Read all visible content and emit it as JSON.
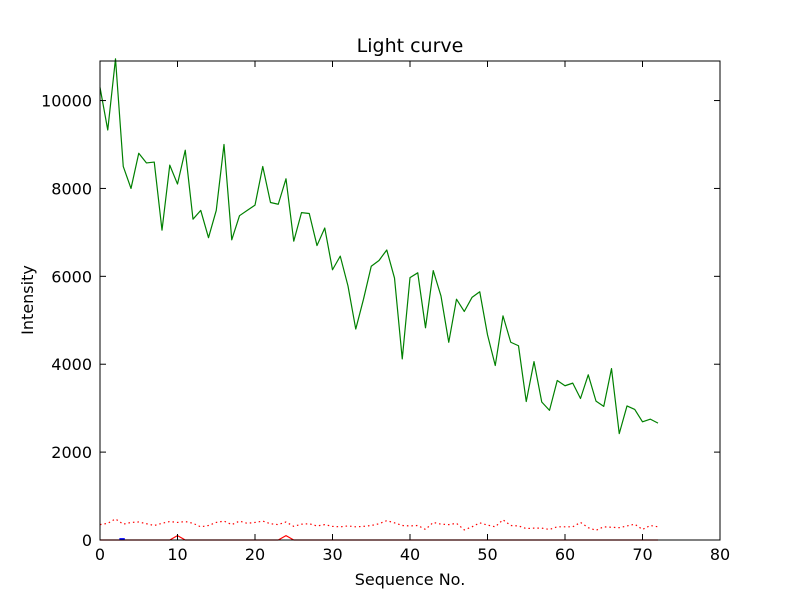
{
  "chart_data": {
    "type": "line",
    "title": "Light curve",
    "xlabel": "Sequence No.",
    "ylabel": "Intensity",
    "xlim": [
      0,
      80
    ],
    "ylim": [
      0,
      10900
    ],
    "xticks": [
      "0",
      "10",
      "20",
      "30",
      "40",
      "50",
      "60",
      "70",
      "80"
    ],
    "yticks": [
      "0",
      "2000",
      "4000",
      "6000",
      "8000",
      "10000"
    ],
    "grid": false,
    "legend": "none",
    "series": [
      {
        "color": "#008000",
        "style": "solid",
        "x": [
          0,
          1,
          2,
          3,
          4,
          5,
          6,
          7,
          8,
          9,
          10,
          11,
          12,
          13,
          14,
          15,
          16,
          17,
          18,
          19,
          20,
          21,
          22,
          23,
          24,
          25,
          26,
          27,
          28,
          29,
          30,
          31,
          32,
          33,
          34,
          35,
          36,
          37,
          38,
          39,
          40,
          41,
          42,
          43,
          44,
          45,
          46,
          47,
          48,
          49,
          50,
          51,
          52,
          53,
          54,
          55,
          56,
          57,
          58,
          59,
          60,
          61,
          62,
          63,
          64,
          65,
          66,
          67,
          68,
          69,
          70,
          71,
          72
        ],
        "values": [
          10300,
          9330,
          10950,
          8500,
          8000,
          8800,
          8580,
          8600,
          7050,
          8530,
          8100,
          8870,
          7300,
          7500,
          6880,
          7500,
          9000,
          6830,
          7380,
          7500,
          7620,
          8500,
          7680,
          7640,
          8220,
          6800,
          7450,
          7430,
          6700,
          7100,
          6150,
          6460,
          5780,
          4800,
          5480,
          6230,
          6360,
          6600,
          5960,
          4120,
          5970,
          6080,
          4830,
          6130,
          5550,
          4500,
          5480,
          5200,
          5520,
          5650,
          4670,
          3970,
          5100,
          4500,
          4420,
          3150,
          4060,
          3140,
          2950,
          3630,
          3510,
          3570,
          3220,
          3760,
          3160,
          3040,
          3900,
          2420,
          3050,
          2970,
          2690,
          2750,
          2660
        ]
      },
      {
        "color": "#ff0000",
        "style": "dotted",
        "x": [
          0,
          1,
          2,
          3,
          4,
          5,
          6,
          7,
          8,
          9,
          10,
          11,
          12,
          13,
          14,
          15,
          16,
          17,
          18,
          19,
          20,
          21,
          22,
          23,
          24,
          25,
          26,
          27,
          28,
          29,
          30,
          31,
          32,
          33,
          34,
          35,
          36,
          37,
          38,
          39,
          40,
          41,
          42,
          43,
          44,
          45,
          46,
          47,
          48,
          49,
          50,
          51,
          52,
          53,
          54,
          55,
          56,
          57,
          58,
          59,
          60,
          61,
          62,
          63,
          64,
          65,
          66,
          67,
          68,
          69,
          70,
          71,
          72
        ],
        "values": [
          350,
          380,
          480,
          360,
          400,
          410,
          370,
          330,
          380,
          420,
          400,
          420,
          380,
          300,
          330,
          400,
          430,
          350,
          430,
          380,
          400,
          430,
          370,
          350,
          410,
          310,
          360,
          370,
          320,
          350,
          310,
          300,
          320,
          300,
          310,
          330,
          370,
          440,
          390,
          330,
          320,
          330,
          240,
          400,
          360,
          350,
          380,
          230,
          300,
          390,
          340,
          300,
          460,
          330,
          320,
          260,
          270,
          270,
          240,
          300,
          300,
          300,
          400,
          280,
          220,
          300,
          290,
          280,
          320,
          360,
          240,
          330,
          300
        ]
      },
      {
        "color": "#ff0000",
        "style": "solid",
        "x": [
          0,
          9,
          10,
          11,
          23,
          24,
          25,
          72
        ],
        "values": [
          0,
          0,
          100,
          0,
          0,
          100,
          0,
          0
        ]
      },
      {
        "color": "#0000ff",
        "style": "solid",
        "x": [
          2.5,
          3.2
        ],
        "values": [
          20,
          20
        ]
      }
    ]
  }
}
